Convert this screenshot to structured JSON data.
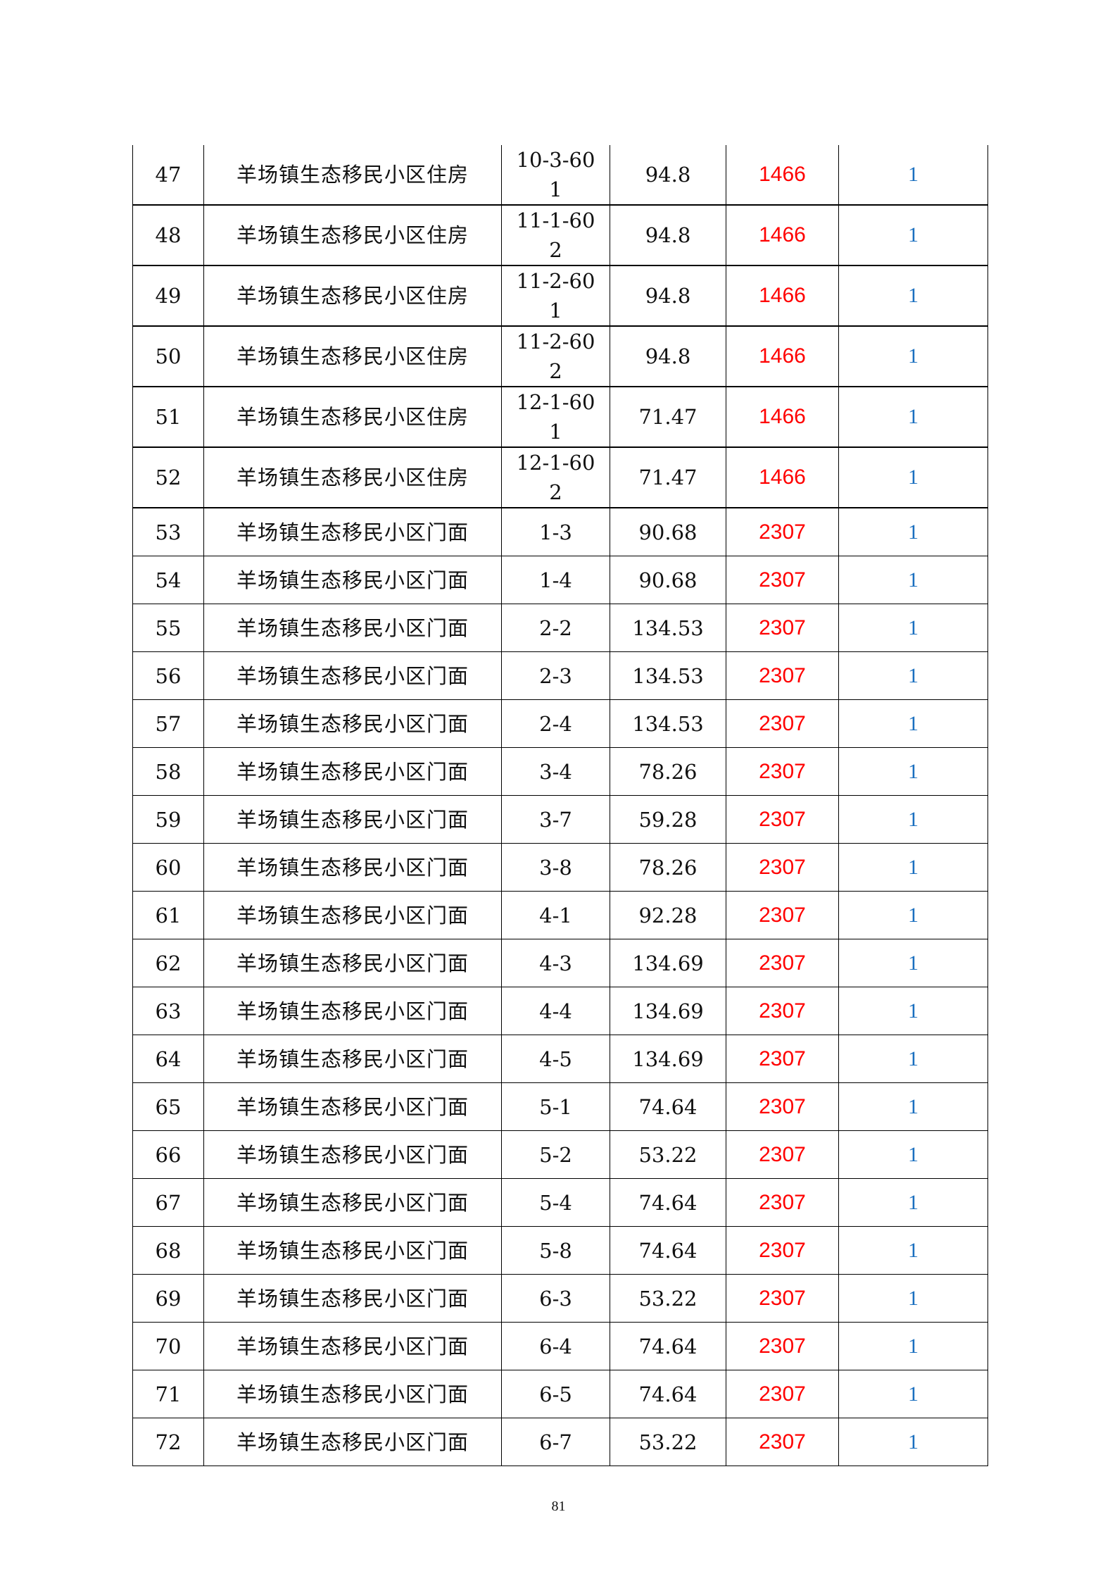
{
  "table": {
    "rows": [
      {
        "no": "47",
        "name": "羊场镇生态移民小区住房",
        "code": "10-3-60",
        "code2": "1",
        "area": "94.8",
        "value": "1466",
        "count": "1"
      },
      {
        "no": "48",
        "name": "羊场镇生态移民小区住房",
        "code": "11-1-60",
        "code2": "2",
        "area": "94.8",
        "value": "1466",
        "count": "1"
      },
      {
        "no": "49",
        "name": "羊场镇生态移民小区住房",
        "code": "11-2-60",
        "code2": "1",
        "area": "94.8",
        "value": "1466",
        "count": "1"
      },
      {
        "no": "50",
        "name": "羊场镇生态移民小区住房",
        "code": "11-2-60",
        "code2": "2",
        "area": "94.8",
        "value": "1466",
        "count": "1"
      },
      {
        "no": "51",
        "name": "羊场镇生态移民小区住房",
        "code": "12-1-60",
        "code2": "1",
        "area": "71.47",
        "value": "1466",
        "count": "1"
      },
      {
        "no": "52",
        "name": "羊场镇生态移民小区住房",
        "code": "12-1-60",
        "code2": "2",
        "area": "71.47",
        "value": "1466",
        "count": "1"
      },
      {
        "no": "53",
        "name": "羊场镇生态移民小区门面",
        "code": "1-3",
        "area": "90.68",
        "value": "2307",
        "count": "1"
      },
      {
        "no": "54",
        "name": "羊场镇生态移民小区门面",
        "code": "1-4",
        "area": "90.68",
        "value": "2307",
        "count": "1"
      },
      {
        "no": "55",
        "name": "羊场镇生态移民小区门面",
        "code": "2-2",
        "area": "134.53",
        "value": "2307",
        "count": "1"
      },
      {
        "no": "56",
        "name": "羊场镇生态移民小区门面",
        "code": "2-3",
        "area": "134.53",
        "value": "2307",
        "count": "1"
      },
      {
        "no": "57",
        "name": "羊场镇生态移民小区门面",
        "code": "2-4",
        "area": "134.53",
        "value": "2307",
        "count": "1"
      },
      {
        "no": "58",
        "name": "羊场镇生态移民小区门面",
        "code": "3-4",
        "area": "78.26",
        "value": "2307",
        "count": "1"
      },
      {
        "no": "59",
        "name": "羊场镇生态移民小区门面",
        "code": "3-7",
        "area": "59.28",
        "value": "2307",
        "count": "1"
      },
      {
        "no": "60",
        "name": "羊场镇生态移民小区门面",
        "code": "3-8",
        "area": "78.26",
        "value": "2307",
        "count": "1"
      },
      {
        "no": "61",
        "name": "羊场镇生态移民小区门面",
        "code": "4-1",
        "area": "92.28",
        "value": "2307",
        "count": "1"
      },
      {
        "no": "62",
        "name": "羊场镇生态移民小区门面",
        "code": "4-3",
        "area": "134.69",
        "value": "2307",
        "count": "1"
      },
      {
        "no": "63",
        "name": "羊场镇生态移民小区门面",
        "code": "4-4",
        "area": "134.69",
        "value": "2307",
        "count": "1"
      },
      {
        "no": "64",
        "name": "羊场镇生态移民小区门面",
        "code": "4-5",
        "area": "134.69",
        "value": "2307",
        "count": "1"
      },
      {
        "no": "65",
        "name": "羊场镇生态移民小区门面",
        "code": "5-1",
        "area": "74.64",
        "value": "2307",
        "count": "1"
      },
      {
        "no": "66",
        "name": "羊场镇生态移民小区门面",
        "code": "5-2",
        "area": "53.22",
        "value": "2307",
        "count": "1"
      },
      {
        "no": "67",
        "name": "羊场镇生态移民小区门面",
        "code": "5-4",
        "area": "74.64",
        "value": "2307",
        "count": "1"
      },
      {
        "no": "68",
        "name": "羊场镇生态移民小区门面",
        "code": "5-8",
        "area": "74.64",
        "value": "2307",
        "count": "1"
      },
      {
        "no": "69",
        "name": "羊场镇生态移民小区门面",
        "code": "6-3",
        "area": "53.22",
        "value": "2307",
        "count": "1"
      },
      {
        "no": "70",
        "name": "羊场镇生态移民小区门面",
        "code": "6-4",
        "area": "74.64",
        "value": "2307",
        "count": "1"
      },
      {
        "no": "71",
        "name": "羊场镇生态移民小区门面",
        "code": "6-5",
        "area": "74.64",
        "value": "2307",
        "count": "1"
      },
      {
        "no": "72",
        "name": "羊场镇生态移民小区门面",
        "code": "6-7",
        "area": "53.22",
        "value": "2307",
        "count": "1"
      }
    ]
  },
  "colors": {
    "value": "#ff0000",
    "count": "#1a6fbf"
  },
  "page_number": "81"
}
